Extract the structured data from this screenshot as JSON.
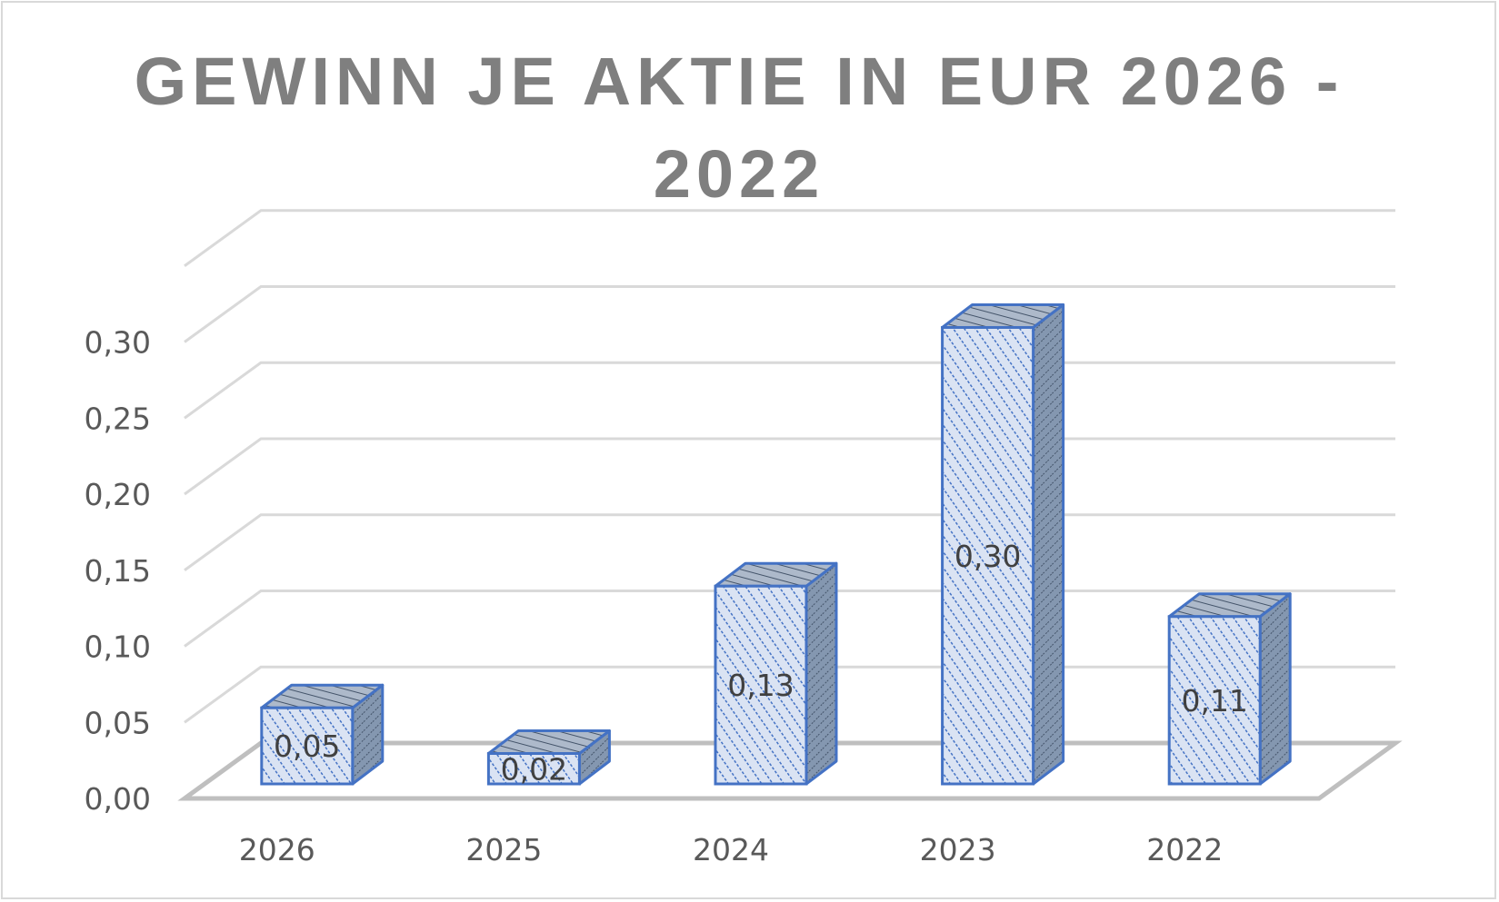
{
  "chart_data": {
    "type": "bar",
    "title_lines": [
      "GEWINN JE AKTIE IN EUR 2026 -",
      "2022"
    ],
    "categories": [
      "2026",
      "2025",
      "2024",
      "2023",
      "2022"
    ],
    "values": [
      0.05,
      0.02,
      0.13,
      0.3,
      0.11
    ],
    "data_labels": [
      "0,05",
      "0,02",
      "0,13",
      "0,30",
      "0,11"
    ],
    "ylim": [
      0,
      0.35
    ],
    "y_ticks": [
      0,
      0.05,
      0.1,
      0.15,
      0.2,
      0.25,
      0.3
    ],
    "y_tick_labels": [
      "0,00",
      "0,05",
      "0,10",
      "0,15",
      "0,20",
      "0,25",
      "0,30"
    ],
    "grid": true,
    "legend": false,
    "style": "3d-column",
    "colors": {
      "bar_outline": "#4472c4",
      "bar_front_fill": "#dae3f3",
      "bar_side_fill": "#8497b0",
      "gridline": "#d9d9d9",
      "floor": "#bfbfbf",
      "title": "#7f7f7f"
    }
  }
}
